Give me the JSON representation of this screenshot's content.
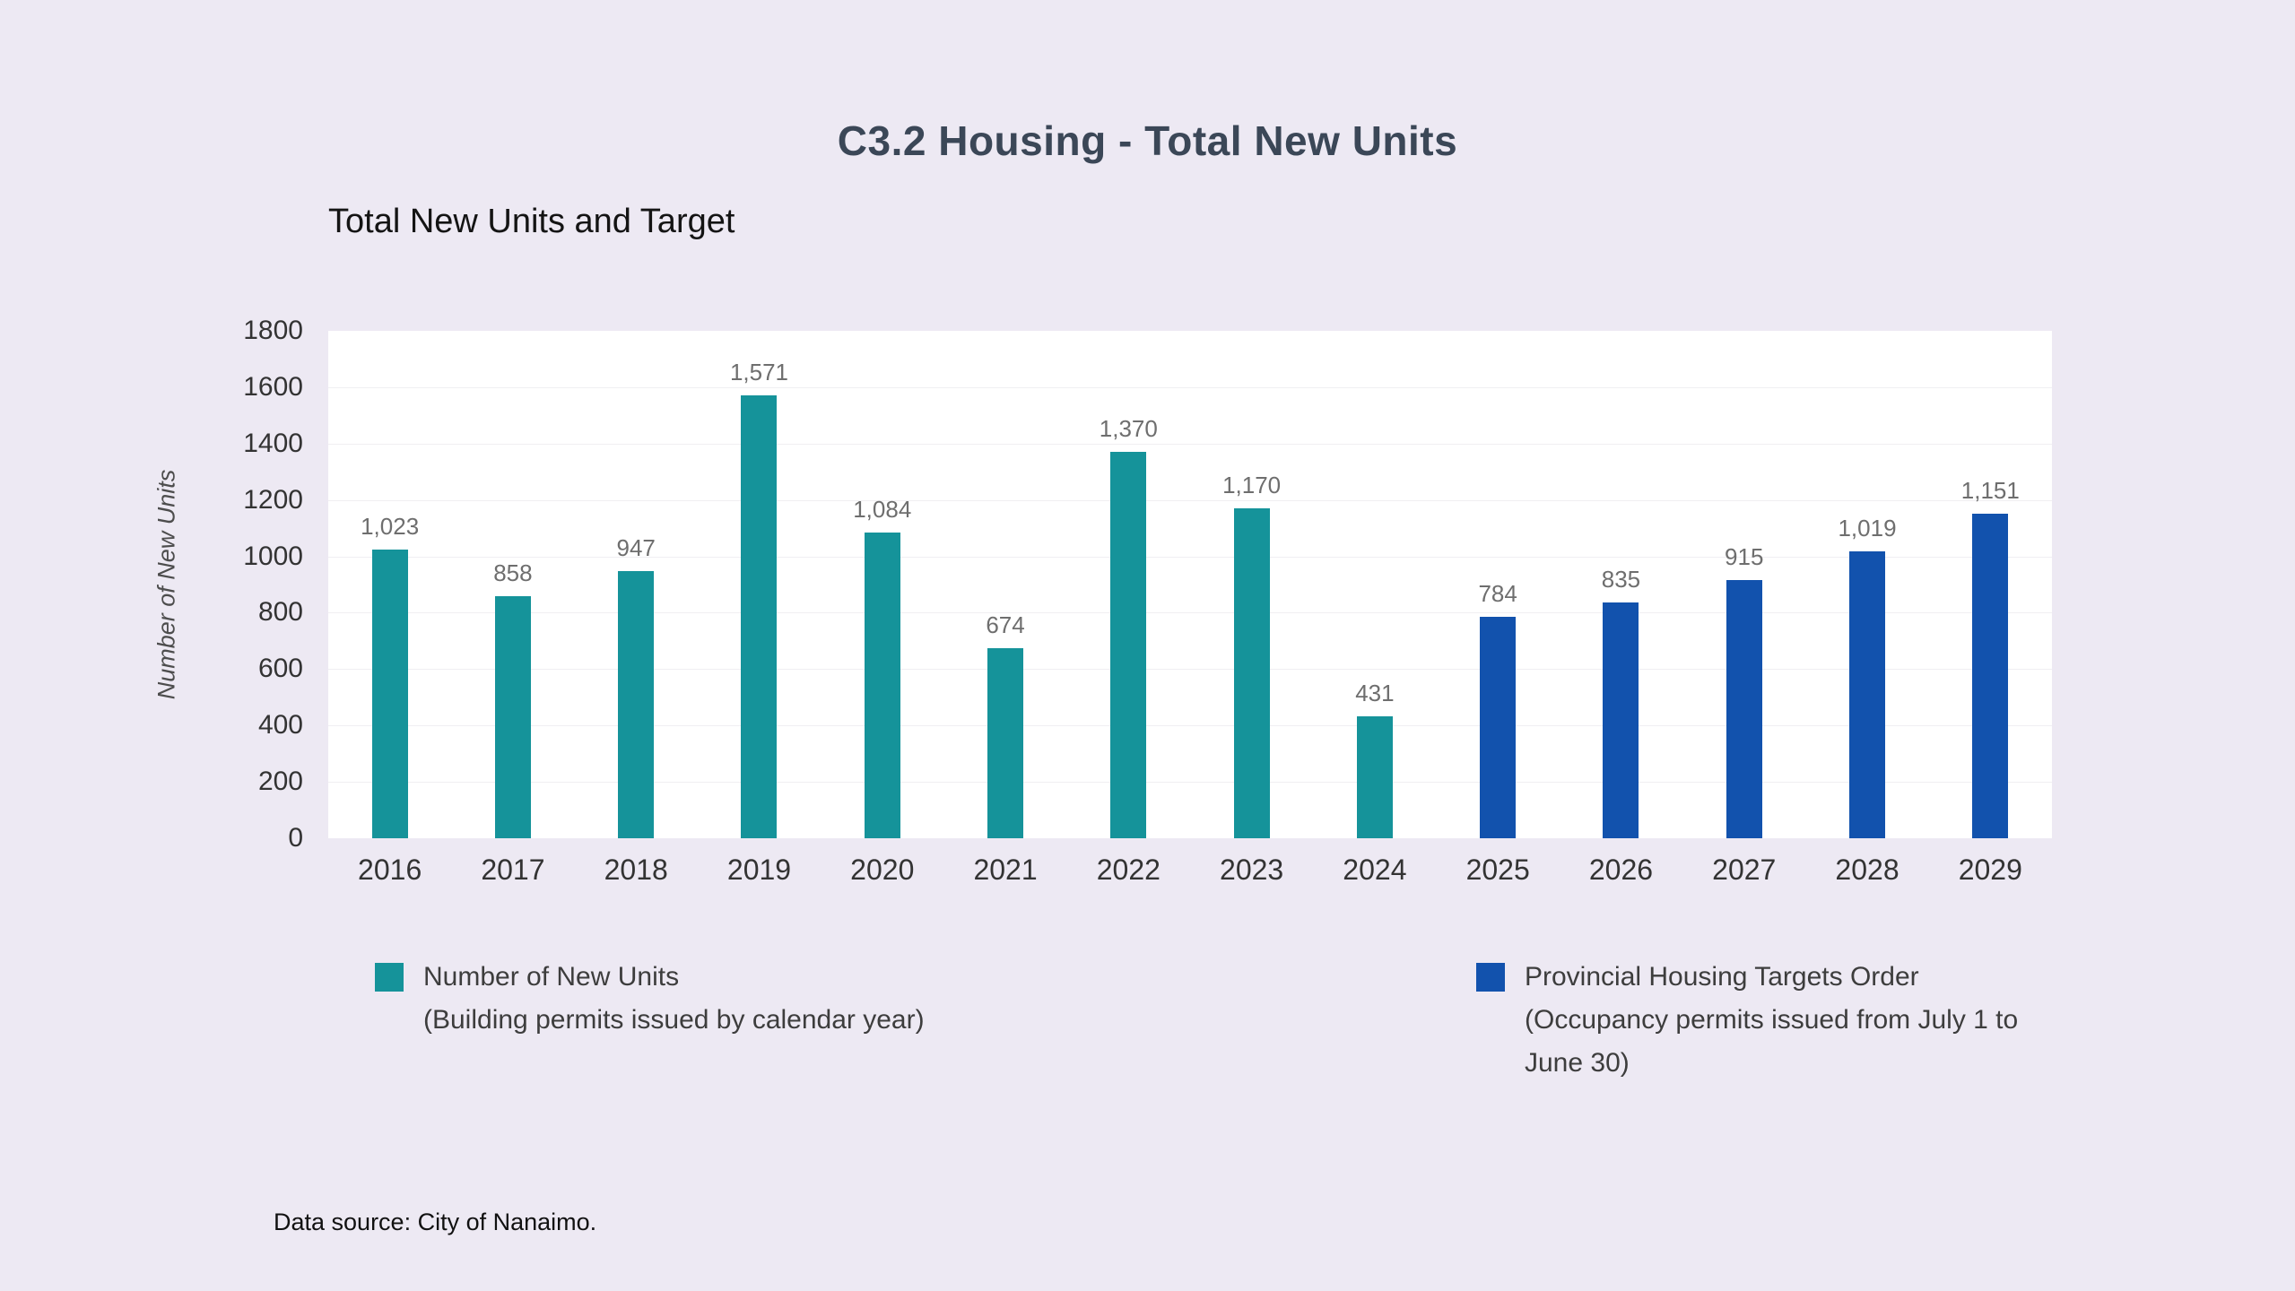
{
  "page": {
    "background": "#EDE9F3",
    "title": "C3.2 Housing - Total New Units",
    "title_color": "#3B4757"
  },
  "chart": {
    "subtitle": "Total New Units and Target",
    "y_axis_title": "Number of New Units",
    "data_source": "Data source: City of Nanaimo."
  },
  "legend": [
    {
      "label": "Number of New Units",
      "sublabel": "(Building permits issued by calendar year)",
      "color": "#15939A"
    },
    {
      "label": "Provincial Housing Targets Order",
      "sublabel": "(Occupancy permits issued from July 1 to June 30)",
      "color": "#1252AD"
    }
  ],
  "chart_data": {
    "type": "bar",
    "title": "Total New Units and Target",
    "xlabel": "",
    "ylabel": "Number of New Units",
    "ylim": [
      0,
      1800
    ],
    "yticks": [
      0,
      200,
      400,
      600,
      800,
      1000,
      1200,
      1400,
      1600,
      1800
    ],
    "grid": true,
    "legend_position": "bottom",
    "categories": [
      "2016",
      "2017",
      "2018",
      "2019",
      "2020",
      "2021",
      "2022",
      "2023",
      "2024",
      "2025",
      "2026",
      "2027",
      "2028",
      "2029"
    ],
    "series": [
      {
        "name": "Number of New Units (Building permits issued by calendar year)",
        "color": "#15939A",
        "values": [
          1023,
          858,
          947,
          1571,
          1084,
          674,
          1370,
          1170,
          431,
          null,
          null,
          null,
          null,
          null
        ]
      },
      {
        "name": "Provincial Housing Targets Order (Occupancy permits issued from July 1 to June 30)",
        "color": "#1252AD",
        "values": [
          null,
          null,
          null,
          null,
          null,
          null,
          null,
          null,
          null,
          784,
          835,
          915,
          1019,
          1151
        ]
      }
    ],
    "data_labels": [
      "1,023",
      "858",
      "947",
      "1,571",
      "1,084",
      "674",
      "1,370",
      "1,170",
      "431",
      "784",
      "835",
      "915",
      "1,019",
      "1,151"
    ]
  }
}
